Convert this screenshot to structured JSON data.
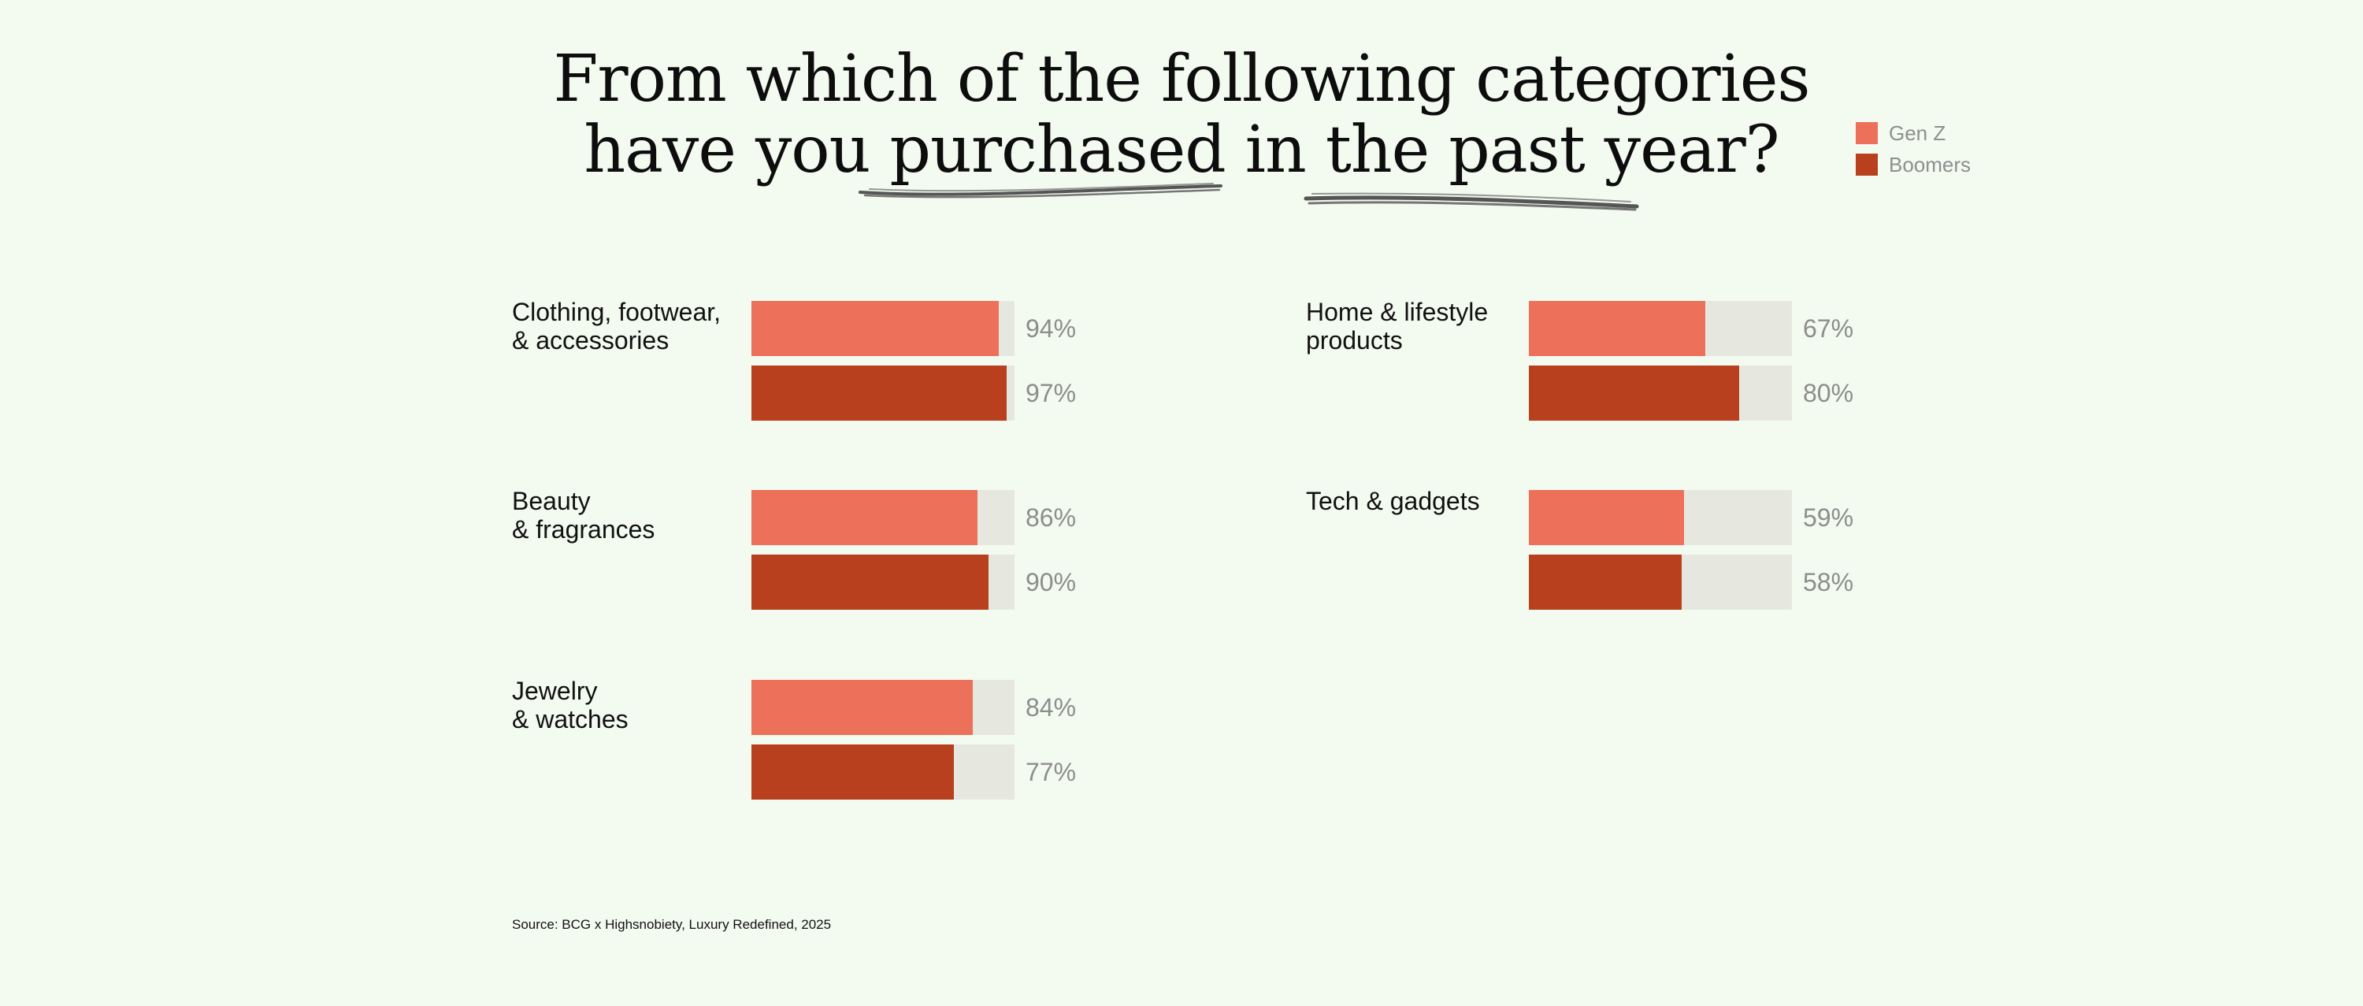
{
  "chart_data": {
    "type": "bar",
    "title_lines": [
      "From which of the following categories",
      "have you purchased in the past year?"
    ],
    "source": "Source: BCG x Highsnobiety, Luxury Redefined, 2025",
    "value_suffix": "%",
    "xlim": [
      0,
      100
    ],
    "legend_position": "top-right",
    "series": [
      {
        "name": "Gen Z",
        "color": "#ed705a"
      },
      {
        "name": "Boomers",
        "color": "#b8401e"
      }
    ],
    "categories": [
      {
        "label": "Clothing, footwear,\n& accessories",
        "values": [
          94,
          97
        ]
      },
      {
        "label": "Beauty\n& fragrances",
        "values": [
          86,
          90
        ]
      },
      {
        "label": "Jewelry\n& watches",
        "values": [
          84,
          77
        ]
      },
      {
        "label": "Home & lifestyle\nproducts",
        "values": [
          67,
          80
        ]
      },
      {
        "label": "Tech & gadgets",
        "values": [
          59,
          58
        ]
      }
    ]
  }
}
